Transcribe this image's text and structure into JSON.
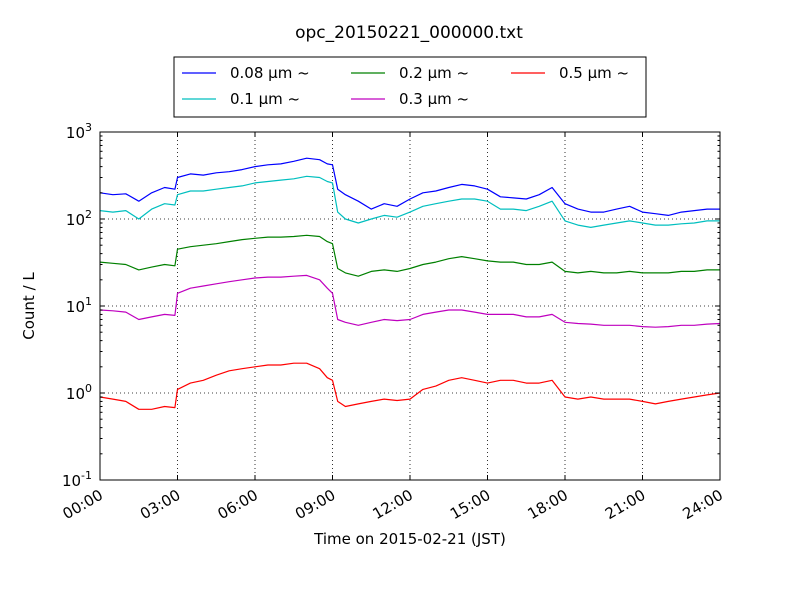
{
  "chart_data": {
    "type": "line",
    "title": "opc_20150221_000000.txt",
    "xlabel": "Time on 2015-02-21 (JST)",
    "ylabel": "Count / L",
    "x_unit": "hour",
    "xlim": [
      0,
      24
    ],
    "yscale": "log",
    "ylim": [
      0.1,
      1000
    ],
    "grid": true,
    "legend_position": "top-center",
    "x_ticks": [
      {
        "value": 0,
        "label": "00:00"
      },
      {
        "value": 3,
        "label": "03:00"
      },
      {
        "value": 6,
        "label": "06:00"
      },
      {
        "value": 9,
        "label": "09:00"
      },
      {
        "value": 12,
        "label": "12:00"
      },
      {
        "value": 15,
        "label": "15:00"
      },
      {
        "value": 18,
        "label": "18:00"
      },
      {
        "value": 21,
        "label": "21:00"
      },
      {
        "value": 24,
        "label": "24:00"
      }
    ],
    "y_ticks": [
      {
        "value": 0.1,
        "label_base": "10",
        "label_exp": "-1"
      },
      {
        "value": 1,
        "label_base": "10",
        "label_exp": "0"
      },
      {
        "value": 10,
        "label_base": "10",
        "label_exp": "1"
      },
      {
        "value": 100,
        "label_base": "10",
        "label_exp": "2"
      },
      {
        "value": 1000,
        "label_base": "10",
        "label_exp": "3"
      }
    ],
    "x": [
      0,
      0.5,
      1,
      1.5,
      2,
      2.5,
      2.9,
      3,
      3.5,
      4,
      4.5,
      5,
      5.5,
      6,
      6.5,
      7,
      7.5,
      8,
      8.5,
      8.8,
      9,
      9.2,
      9.5,
      10,
      10.5,
      11,
      11.5,
      12,
      12.5,
      13,
      13.5,
      14,
      14.5,
      15,
      15.5,
      16,
      16.5,
      17,
      17.5,
      18,
      18.5,
      19,
      19.5,
      20,
      20.5,
      21,
      21.5,
      22,
      22.5,
      23,
      23.5,
      24
    ],
    "series": [
      {
        "name": "0.08 μm ~",
        "color": "#0000ff",
        "values": [
          200,
          190,
          195,
          160,
          200,
          230,
          220,
          300,
          330,
          320,
          340,
          350,
          370,
          400,
          420,
          430,
          460,
          500,
          480,
          430,
          420,
          220,
          190,
          160,
          130,
          150,
          140,
          170,
          200,
          210,
          230,
          250,
          240,
          220,
          180,
          175,
          170,
          190,
          230,
          150,
          130,
          120,
          120,
          130,
          140,
          120,
          115,
          110,
          120,
          125,
          130,
          130
        ]
      },
      {
        "name": "0.1 μm ~",
        "color": "#00bfbf",
        "values": [
          125,
          120,
          125,
          100,
          130,
          150,
          145,
          190,
          210,
          210,
          220,
          230,
          240,
          260,
          270,
          280,
          290,
          310,
          300,
          270,
          260,
          120,
          100,
          90,
          100,
          110,
          105,
          120,
          140,
          150,
          160,
          170,
          170,
          160,
          130,
          130,
          125,
          140,
          160,
          95,
          85,
          80,
          85,
          90,
          95,
          90,
          85,
          85,
          88,
          90,
          95,
          95
        ]
      },
      {
        "name": "0.2 μm ~",
        "color": "#008000",
        "values": [
          32,
          31,
          30,
          26,
          28,
          30,
          29,
          45,
          48,
          50,
          52,
          55,
          58,
          60,
          62,
          62,
          63,
          65,
          63,
          55,
          52,
          27,
          24,
          22,
          25,
          26,
          25,
          27,
          30,
          32,
          35,
          37,
          35,
          33,
          32,
          32,
          30,
          30,
          32,
          25,
          24,
          25,
          24,
          24,
          25,
          24,
          24,
          24,
          25,
          25,
          26,
          26
        ]
      },
      {
        "name": "0.3 μm ~",
        "color": "#bf00bf",
        "values": [
          9,
          8.8,
          8.5,
          7,
          7.5,
          8,
          7.8,
          14,
          16,
          17,
          18,
          19,
          20,
          21,
          21.5,
          21.5,
          22,
          22.5,
          20,
          16,
          14,
          7,
          6.5,
          6,
          6.5,
          7,
          6.8,
          7,
          8,
          8.5,
          9,
          9,
          8.5,
          8,
          8,
          8,
          7.5,
          7.5,
          8,
          6.5,
          6.3,
          6.2,
          6,
          6,
          6,
          5.8,
          5.7,
          5.8,
          6,
          6,
          6.2,
          6.3
        ]
      },
      {
        "name": "0.5 μm ~",
        "color": "#ff0000",
        "values": [
          0.9,
          0.85,
          0.8,
          0.65,
          0.65,
          0.7,
          0.68,
          1.1,
          1.3,
          1.4,
          1.6,
          1.8,
          1.9,
          2,
          2.1,
          2.1,
          2.2,
          2.2,
          1.9,
          1.5,
          1.4,
          0.8,
          0.7,
          0.75,
          0.8,
          0.85,
          0.82,
          0.85,
          1.1,
          1.2,
          1.4,
          1.5,
          1.4,
          1.3,
          1.4,
          1.4,
          1.3,
          1.3,
          1.4,
          0.9,
          0.85,
          0.9,
          0.85,
          0.85,
          0.85,
          0.8,
          0.75,
          0.8,
          0.85,
          0.9,
          0.95,
          1
        ]
      }
    ]
  }
}
